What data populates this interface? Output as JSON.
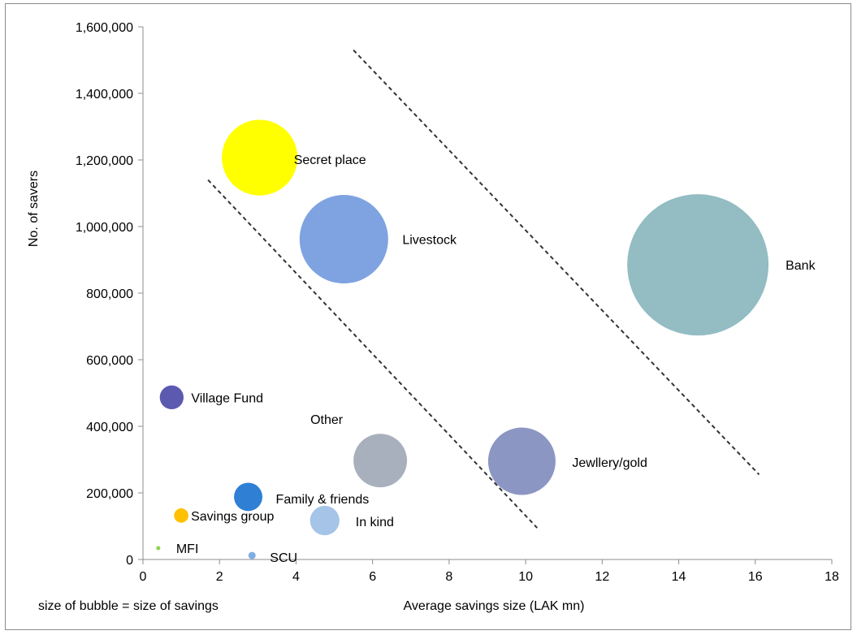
{
  "chart_data": {
    "type": "bubble",
    "title": "",
    "xlabel": "Average savings size (LAK mn)",
    "ylabel": "No. of savers",
    "xlim": [
      0,
      18
    ],
    "ylim": [
      0,
      1600000
    ],
    "x_ticks": [
      "0",
      "2",
      "4",
      "6",
      "8",
      "10",
      "12",
      "14",
      "16",
      "18"
    ],
    "x_tick_values": [
      0,
      2,
      4,
      6,
      8,
      10,
      12,
      14,
      16,
      18
    ],
    "y_ticks": [
      "0",
      "200,000",
      "400,000",
      "600,000",
      "800,000",
      "1,000,000",
      "1,200,000",
      "1,400,000",
      "1,600,000"
    ],
    "y_tick_values": [
      0,
      200000,
      400000,
      600000,
      800000,
      1000000,
      1200000,
      1400000,
      1600000
    ],
    "grid": false,
    "legend": "none",
    "note": "size of bubble = size of savings",
    "series": [
      {
        "label": "Secret place",
        "x": 3.05,
        "y": 1207000,
        "size": 3680000,
        "color": "#ffff00"
      },
      {
        "label": "Livestock",
        "x": 5.25,
        "y": 962000,
        "size": 5040000,
        "color": "#7fa3e0"
      },
      {
        "label": "Bank",
        "x": 14.5,
        "y": 885000,
        "size": 12830000,
        "color": "#93bcc3"
      },
      {
        "label": "Village Fund",
        "x": 0.75,
        "y": 487000,
        "size": 365000,
        "color": "#5b5ab0"
      },
      {
        "label": "Other",
        "x": 6.2,
        "y": 297000,
        "size": 1840000,
        "color": "#a8b0bd"
      },
      {
        "label": "Jewllery/gold",
        "x": 9.9,
        "y": 295000,
        "size": 2920000,
        "color": "#8c96c2"
      },
      {
        "label": "Family & friends",
        "x": 2.75,
        "y": 188000,
        "size": 517000,
        "color": "#2f7fd5"
      },
      {
        "label": "Savings group",
        "x": 1.0,
        "y": 132000,
        "size": 132000,
        "color": "#ffc000"
      },
      {
        "label": "In kind",
        "x": 4.75,
        "y": 117000,
        "size": 556000,
        "color": "#a6c4e8"
      },
      {
        "label": "MFI",
        "x": 0.4,
        "y": 34000,
        "size": 10000,
        "color": "#92d050"
      },
      {
        "label": "SCU",
        "x": 2.85,
        "y": 12000,
        "size": 34000,
        "color": "#7faee3"
      }
    ],
    "reference_lines": [
      {
        "style": "dashed",
        "x1": 1.7,
        "y1": 1140000,
        "x2": 10.3,
        "y2": 95000
      },
      {
        "style": "dashed",
        "x1": 5.5,
        "y1": 1530000,
        "x2": 16.1,
        "y2": 255000
      }
    ]
  }
}
